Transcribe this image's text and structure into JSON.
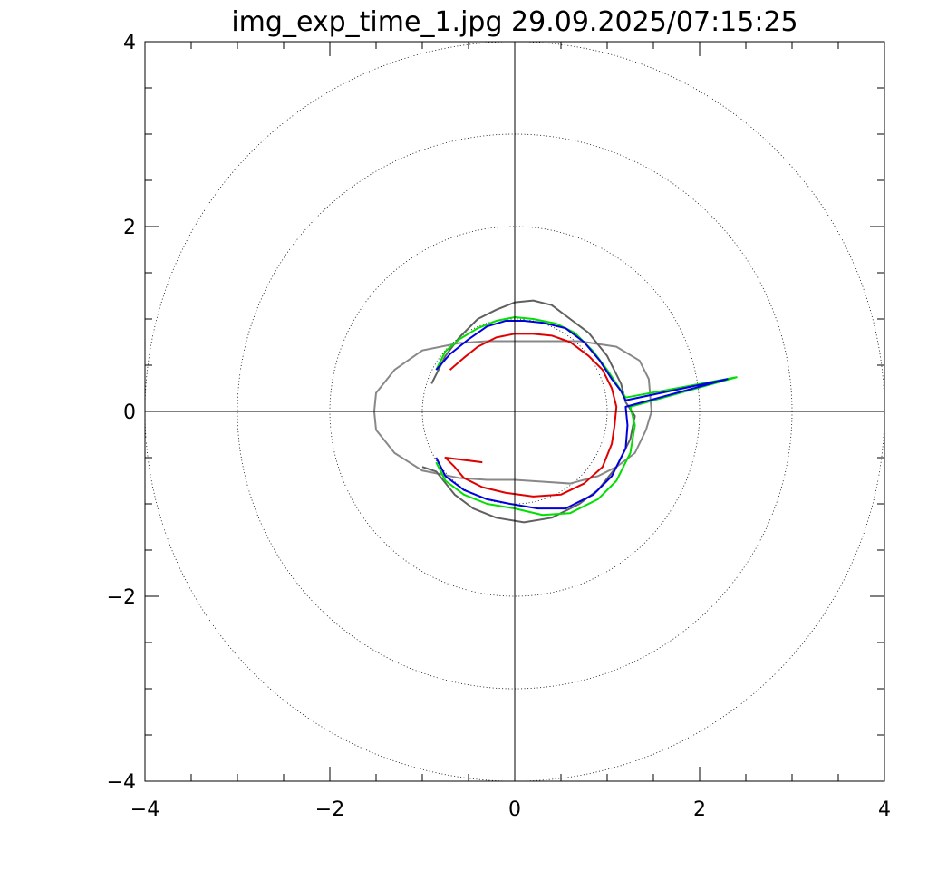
{
  "chart_data": {
    "type": "line",
    "title": "img_exp_time_1.jpg 29.09.2025/07:15:25",
    "xlim": [
      -4,
      4
    ],
    "ylim": [
      -4,
      4
    ],
    "x_ticks": [
      -4,
      -2,
      0,
      2,
      4
    ],
    "y_ticks": [
      4,
      2,
      0,
      -2,
      -4
    ],
    "x_tick_labels": [
      "−4",
      "−2",
      "0",
      "2",
      "4"
    ],
    "y_tick_labels": [
      "4",
      "2",
      "0",
      "−2",
      "−4"
    ],
    "grid": "dotted concentric circles",
    "circle_radii": [
      1,
      2,
      3,
      4
    ],
    "colors": {
      "gray": "#888888",
      "dark_gray": "#606060",
      "green": "#00e000",
      "blue": "#0000e0",
      "red": "#e00000",
      "axis": "#000000"
    },
    "reference_outline": {
      "points": [
        [
          1.48,
          0.0
        ],
        [
          1.45,
          0.35
        ],
        [
          1.35,
          0.55
        ],
        [
          1.1,
          0.7
        ],
        [
          0.7,
          0.76
        ],
        [
          0.3,
          0.76
        ],
        [
          0.0,
          0.76
        ],
        [
          -0.3,
          0.76
        ],
        [
          -0.6,
          0.74
        ],
        [
          -1.0,
          0.66
        ],
        [
          -1.3,
          0.45
        ],
        [
          -1.5,
          0.2
        ],
        [
          -1.52,
          0.0
        ],
        [
          -1.5,
          -0.2
        ],
        [
          -1.3,
          -0.45
        ],
        [
          -1.0,
          -0.64
        ],
        [
          -0.6,
          -0.72
        ],
        [
          -0.3,
          -0.74
        ],
        [
          0.0,
          -0.74
        ],
        [
          0.3,
          -0.76
        ],
        [
          0.6,
          -0.78
        ],
        [
          0.9,
          -0.7
        ],
        [
          1.1,
          -0.6
        ],
        [
          1.3,
          -0.45
        ],
        [
          1.42,
          -0.2
        ],
        [
          1.48,
          0.0
        ]
      ]
    },
    "series": [
      {
        "color": "#606060",
        "points": [
          [
            -0.9,
            0.3
          ],
          [
            -0.85,
            0.4
          ],
          [
            -0.75,
            0.6
          ],
          [
            -0.6,
            0.8
          ],
          [
            -0.4,
            1.0
          ],
          [
            -0.2,
            1.1
          ],
          [
            0.0,
            1.18
          ],
          [
            0.2,
            1.2
          ],
          [
            0.4,
            1.15
          ],
          [
            0.6,
            1.0
          ],
          [
            0.8,
            0.85
          ],
          [
            1.0,
            0.6
          ],
          [
            1.15,
            0.3
          ],
          [
            1.2,
            0.1
          ],
          [
            1.3,
            -0.05
          ],
          [
            1.25,
            -0.3
          ],
          [
            1.1,
            -0.6
          ],
          [
            0.9,
            -0.85
          ],
          [
            0.7,
            -1.0
          ],
          [
            0.4,
            -1.15
          ],
          [
            0.1,
            -1.2
          ],
          [
            -0.2,
            -1.15
          ],
          [
            -0.45,
            -1.05
          ],
          [
            -0.65,
            -0.9
          ],
          [
            -0.85,
            -0.65
          ],
          [
            -1.0,
            -0.6
          ]
        ]
      },
      {
        "color": "#00e000",
        "points": [
          [
            -0.85,
            0.45
          ],
          [
            -0.75,
            0.65
          ],
          [
            -0.6,
            0.78
          ],
          [
            -0.4,
            0.9
          ],
          [
            -0.2,
            0.98
          ],
          [
            0.0,
            1.02
          ],
          [
            0.2,
            1.0
          ],
          [
            0.45,
            0.95
          ],
          [
            0.65,
            0.85
          ],
          [
            0.85,
            0.65
          ],
          [
            1.0,
            0.45
          ],
          [
            1.1,
            0.3
          ],
          [
            1.2,
            0.15
          ],
          [
            2.4,
            0.37
          ],
          [
            1.25,
            0.05
          ],
          [
            1.3,
            -0.15
          ],
          [
            1.25,
            -0.45
          ],
          [
            1.1,
            -0.75
          ],
          [
            0.9,
            -0.95
          ],
          [
            0.6,
            -1.1
          ],
          [
            0.3,
            -1.12
          ],
          [
            0.0,
            -1.05
          ],
          [
            -0.3,
            -1.0
          ],
          [
            -0.55,
            -0.9
          ],
          [
            -0.75,
            -0.75
          ],
          [
            -0.85,
            -0.55
          ]
        ]
      },
      {
        "color": "#0000e0",
        "points": [
          [
            -0.85,
            0.45
          ],
          [
            -0.7,
            0.62
          ],
          [
            -0.5,
            0.78
          ],
          [
            -0.3,
            0.92
          ],
          [
            -0.1,
            0.98
          ],
          [
            0.1,
            0.98
          ],
          [
            0.3,
            0.96
          ],
          [
            0.55,
            0.9
          ],
          [
            0.75,
            0.75
          ],
          [
            0.92,
            0.55
          ],
          [
            1.05,
            0.35
          ],
          [
            1.15,
            0.22
          ],
          [
            1.2,
            0.12
          ],
          [
            2.3,
            0.35
          ],
          [
            1.2,
            0.05
          ],
          [
            1.22,
            -0.15
          ],
          [
            1.2,
            -0.4
          ],
          [
            1.05,
            -0.7
          ],
          [
            0.85,
            -0.9
          ],
          [
            0.55,
            -1.05
          ],
          [
            0.25,
            -1.05
          ],
          [
            -0.05,
            -1.0
          ],
          [
            -0.3,
            -0.95
          ],
          [
            -0.55,
            -0.85
          ],
          [
            -0.75,
            -0.7
          ],
          [
            -0.85,
            -0.5
          ]
        ]
      },
      {
        "color": "#e00000",
        "points": [
          [
            -0.7,
            0.45
          ],
          [
            -0.55,
            0.58
          ],
          [
            -0.4,
            0.7
          ],
          [
            -0.2,
            0.8
          ],
          [
            0.0,
            0.84
          ],
          [
            0.2,
            0.84
          ],
          [
            0.4,
            0.82
          ],
          [
            0.6,
            0.75
          ],
          [
            0.8,
            0.6
          ],
          [
            0.95,
            0.45
          ],
          [
            1.05,
            0.25
          ],
          [
            1.1,
            0.05
          ],
          [
            1.08,
            -0.15
          ],
          [
            1.05,
            -0.35
          ],
          [
            0.95,
            -0.6
          ],
          [
            0.75,
            -0.78
          ],
          [
            0.5,
            -0.9
          ],
          [
            0.2,
            -0.92
          ],
          [
            -0.1,
            -0.88
          ],
          [
            -0.35,
            -0.82
          ],
          [
            -0.55,
            -0.72
          ],
          [
            -0.65,
            -0.6
          ],
          [
            -0.75,
            -0.5
          ],
          [
            -0.35,
            -0.55
          ]
        ]
      }
    ]
  }
}
